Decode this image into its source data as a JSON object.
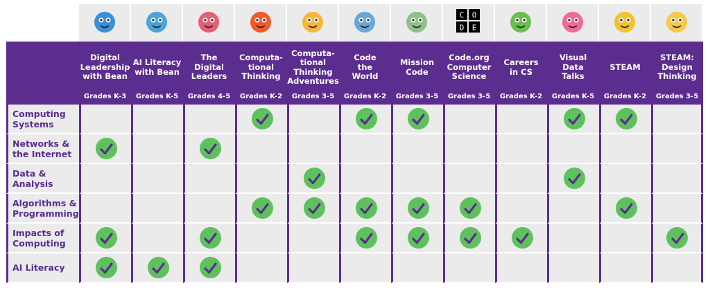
{
  "courses": [
    {
      "title": "Digital\nLeadership\nwith Bean",
      "grades": "Grades K-3",
      "icon": "bean-robot-icon",
      "color": "#3b8fd6"
    },
    {
      "title": "AI Literacy\nwith Bean",
      "grades": "Grades K-5",
      "icon": "bean-globe-icon",
      "color": "#4aa3d9"
    },
    {
      "title": "The\nDigital\nLeaders",
      "grades": "Grades 4-5",
      "icon": "digital-leaders-icon",
      "color": "#e85d75"
    },
    {
      "title": "Computa-\ntional\nThinking",
      "grades": "Grades K-2",
      "icon": "robot-icon",
      "color": "#f05a28"
    },
    {
      "title": "Computa-\ntional\nThinking\nAdventures",
      "grades": "Grades 3-5",
      "icon": "adventure-icon",
      "color": "#f4b73b"
    },
    {
      "title": "Code\nthe\nWorld",
      "grades": "Grades K-2",
      "icon": "laptop-icon",
      "color": "#6aa7d9"
    },
    {
      "title": "Mission\nCode",
      "grades": "Grades 3-5",
      "icon": "rover-icon",
      "color": "#8fbf8a"
    },
    {
      "title": "Code.org\nComputer\nScience",
      "grades": "Grades 3-5",
      "icon": "code-org-logo-icon",
      "color": "#000000"
    },
    {
      "title": "Careers\nin CS",
      "grades": "Grades K-2",
      "icon": "question-mark-icon",
      "color": "#6bbf4e"
    },
    {
      "title": "Visual\nData\nTalks",
      "grades": "Grades K-5",
      "icon": "pink-monster-icon",
      "color": "#f06a93"
    },
    {
      "title": "STEAM",
      "grades": "Grades K-2",
      "icon": "stars-icon",
      "color": "#f1c232"
    },
    {
      "title": "STEAM:\nDesign\nThinking",
      "grades": "Grades 3-5",
      "icon": "lightbulb-icon",
      "color": "#f7c948"
    }
  ],
  "rows": [
    {
      "label": "Computing\nSystems",
      "checks": [
        0,
        0,
        0,
        1,
        0,
        1,
        1,
        0,
        0,
        1,
        1,
        0
      ]
    },
    {
      "label": "Networks &\nthe Internet",
      "checks": [
        1,
        0,
        1,
        0,
        0,
        0,
        0,
        0,
        0,
        0,
        0,
        0
      ]
    },
    {
      "label": "Data &\nAnalysis",
      "checks": [
        0,
        0,
        0,
        0,
        1,
        0,
        0,
        0,
        0,
        1,
        0,
        0
      ]
    },
    {
      "label": "Algorithms &\nProgramming",
      "checks": [
        0,
        0,
        0,
        1,
        1,
        1,
        1,
        1,
        0,
        0,
        1,
        0
      ]
    },
    {
      "label": "Impacts of\nComputing",
      "checks": [
        1,
        0,
        1,
        0,
        0,
        1,
        1,
        1,
        1,
        0,
        0,
        1
      ]
    },
    {
      "label": "AI Literacy",
      "checks": [
        1,
        1,
        1,
        0,
        0,
        0,
        0,
        0,
        0,
        0,
        0,
        0
      ]
    }
  ],
  "colors": {
    "header": "#5b2d8e",
    "check": "#5ec15e",
    "cell": "#ebebec"
  },
  "code_logo_letters": [
    "C",
    "O",
    "D",
    "E"
  ]
}
